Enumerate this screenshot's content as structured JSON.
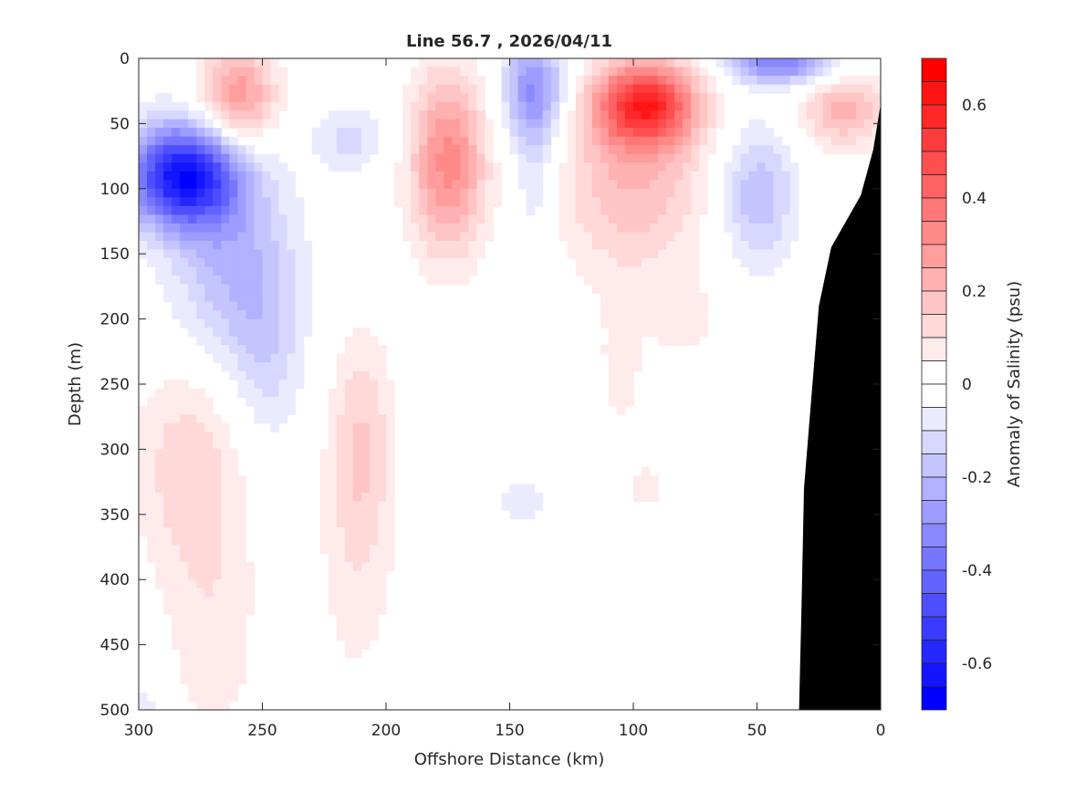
{
  "chart_data": {
    "type": "heatmap",
    "title": "Line 56.7 , 2026/04/11",
    "xlabel": "Offshore Distance (km)",
    "ylabel": "Depth (m)",
    "colorbar_label": "Anomaly of Salinity (psu)",
    "xlim": [
      300,
      0
    ],
    "ylim": [
      0,
      500
    ],
    "x_ticks": [
      "300",
      "250",
      "200",
      "150",
      "100",
      "50",
      "0"
    ],
    "x_tick_values": [
      300,
      250,
      200,
      150,
      100,
      50,
      0
    ],
    "y_ticks": [
      "0",
      "50",
      "100",
      "150",
      "200",
      "250",
      "300",
      "350",
      "400",
      "450",
      "500"
    ],
    "y_tick_values": [
      0,
      50,
      100,
      150,
      200,
      250,
      300,
      350,
      400,
      450,
      500
    ],
    "clim": [
      -0.7,
      0.7
    ],
    "level_step": 0.05,
    "colorbar_ticks": [
      "-0.6",
      "-0.4",
      "-0.2",
      "0",
      "0.2",
      "0.4",
      "0.6"
    ],
    "colorbar_tick_values": [
      -0.6,
      -0.4,
      -0.2,
      0,
      0.2,
      0.4,
      0.6
    ],
    "colors": {
      "positive": "#ff0000",
      "negative": "#0000ff",
      "zero": "#ffffff",
      "bathymetry": "#000000"
    },
    "anomaly_features": [
      {
        "distance_km": 282,
        "depth_m": 90,
        "anomaly_psu": -0.62,
        "sx_km": 16,
        "sz_m": 28
      },
      {
        "distance_km": 262,
        "depth_m": 160,
        "anomaly_psu": -0.2,
        "sx_km": 18,
        "sz_m": 55
      },
      {
        "distance_km": 248,
        "depth_m": 230,
        "anomaly_psu": -0.1,
        "sx_km": 10,
        "sz_m": 50
      },
      {
        "distance_km": 260,
        "depth_m": 30,
        "anomaly_psu": 0.3,
        "sx_km": 11,
        "sz_m": 28
      },
      {
        "distance_km": 215,
        "depth_m": 62,
        "anomaly_psu": -0.12,
        "sx_km": 10,
        "sz_m": 18
      },
      {
        "distance_km": 175,
        "depth_m": 80,
        "anomaly_psu": 0.32,
        "sx_km": 11,
        "sz_m": 50
      },
      {
        "distance_km": 140,
        "depth_m": 25,
        "anomaly_psu": -0.32,
        "sx_km": 9,
        "sz_m": 30
      },
      {
        "distance_km": 140,
        "depth_m": 100,
        "anomaly_psu": -0.1,
        "sx_km": 6,
        "sz_m": 35
      },
      {
        "distance_km": 95,
        "depth_m": 35,
        "anomaly_psu": 0.5,
        "sx_km": 14,
        "sz_m": 22
      },
      {
        "distance_km": 100,
        "depth_m": 90,
        "anomaly_psu": 0.2,
        "sx_km": 22,
        "sz_m": 55
      },
      {
        "distance_km": 40,
        "depth_m": 3,
        "anomaly_psu": -0.35,
        "sx_km": 15,
        "sz_m": 12
      },
      {
        "distance_km": 15,
        "depth_m": 40,
        "anomaly_psu": 0.22,
        "sx_km": 12,
        "sz_m": 20
      },
      {
        "distance_km": 50,
        "depth_m": 105,
        "anomaly_psu": -0.2,
        "sx_km": 11,
        "sz_m": 38
      },
      {
        "distance_km": 280,
        "depth_m": 310,
        "anomaly_psu": 0.13,
        "sx_km": 16,
        "sz_m": 60
      },
      {
        "distance_km": 270,
        "depth_m": 440,
        "anomaly_psu": 0.08,
        "sx_km": 14,
        "sz_m": 70
      },
      {
        "distance_km": 210,
        "depth_m": 290,
        "anomaly_psu": 0.13,
        "sx_km": 9,
        "sz_m": 60
      },
      {
        "distance_km": 212,
        "depth_m": 390,
        "anomaly_psu": 0.07,
        "sx_km": 12,
        "sz_m": 80
      },
      {
        "distance_km": 105,
        "depth_m": 240,
        "anomaly_psu": 0.07,
        "sx_km": 7,
        "sz_m": 40
      },
      {
        "distance_km": 80,
        "depth_m": 200,
        "anomaly_psu": 0.075,
        "sx_km": 9,
        "sz_m": 20
      },
      {
        "distance_km": 95,
        "depth_m": 330,
        "anomaly_psu": 0.07,
        "sx_km": 5,
        "sz_m": 15
      },
      {
        "distance_km": 145,
        "depth_m": 340,
        "anomaly_psu": -0.08,
        "sx_km": 9,
        "sz_m": 15
      },
      {
        "distance_km": 298,
        "depth_m": 495,
        "anomaly_psu": -0.08,
        "sx_km": 5,
        "sz_m": 15
      }
    ],
    "bathymetry": [
      [
        0,
        35
      ],
      [
        3,
        70
      ],
      [
        8,
        105
      ],
      [
        14,
        125
      ],
      [
        20,
        145
      ],
      [
        25,
        190
      ],
      [
        28,
        260
      ],
      [
        31,
        330
      ],
      [
        32,
        420
      ],
      [
        33,
        500
      ],
      [
        0,
        500
      ]
    ]
  }
}
